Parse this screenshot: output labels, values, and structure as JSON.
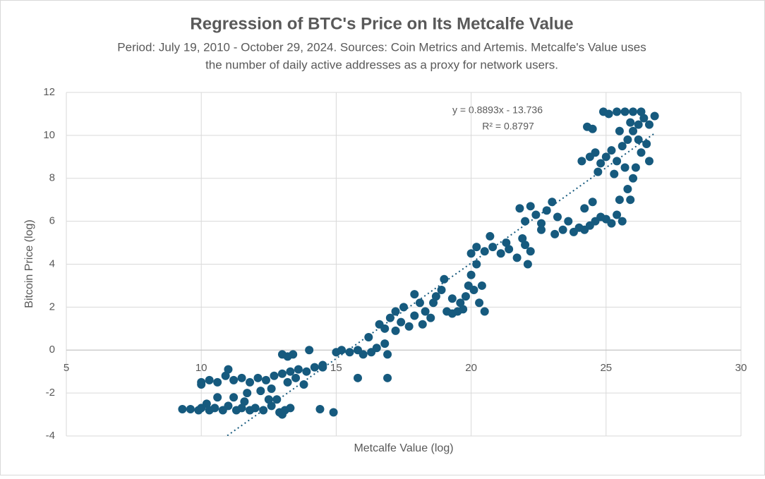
{
  "chart_data": {
    "type": "scatter",
    "title": "Regression of BTC's Price on Its Metcalfe Value",
    "subtitle": [
      "Period: July 19, 2010 - October 29, 2024. Sources: Coin Metrics and Artemis. Metcalfe's Value uses",
      "the number of daily active addresses as a proxy for network users."
    ],
    "x_label": "Metcalfe Value (log)",
    "y_label": "Bitcoin Price (log)",
    "color": "#165a7e",
    "grid": true,
    "xlim": [
      5,
      30
    ],
    "xticks": [
      5,
      10,
      15,
      20,
      25,
      30
    ],
    "ylim": [
      -4,
      12
    ],
    "yticks": [
      -4,
      -2,
      0,
      2,
      4,
      6,
      8,
      10,
      12
    ],
    "trendline": {
      "slope": 0.8893,
      "intercept": -13.736,
      "equation": "y = 0.8893x - 13.736",
      "r_squared": "R² = 0.8797"
    },
    "x": [
      9.3,
      9.6,
      9.9,
      10,
      10.3,
      10.5,
      10.8,
      11,
      11.3,
      11.5,
      11.8,
      12,
      12.3,
      12.6,
      12.9,
      13.1,
      13.3,
      14.4,
      14.9,
      13.0,
      12.5,
      12.8,
      10.2,
      11.6,
      10,
      10,
      10.3,
      10.6,
      10.9,
      11.2,
      11.5,
      11.8,
      12.1,
      12.4,
      12.7,
      13,
      13.3,
      13.6,
      13.9,
      14.2,
      14.5,
      11,
      11.7,
      12.2,
      12.6,
      13.2,
      13.5,
      13.8,
      10.6,
      11.2,
      13,
      13.2,
      13.4,
      14,
      14.5,
      15,
      15.2,
      15.5,
      15.8,
      16,
      16.3,
      16.5,
      16.9,
      16.2,
      15.8,
      16.9,
      16.8,
      16.6,
      16.8,
      17,
      17.2,
      17.4,
      17.5,
      17.7,
      17.9,
      18.1,
      18.3,
      18.5,
      18.7,
      18.9,
      19.1,
      19.3,
      19.5,
      19.7,
      17.9,
      18.2,
      17.2,
      18.6,
      19.0,
      19.3,
      19.6,
      19.8,
      19.9,
      20,
      20.1,
      20.2,
      20.3,
      20.4,
      20.5,
      20,
      20.2,
      20.5,
      20.8,
      21.1,
      21.4,
      21.7,
      22,
      22.2,
      20.7,
      21.3,
      21.9,
      22.1,
      21.8,
      22,
      22.2,
      22.4,
      22.6,
      22.8,
      23,
      23.2,
      23.4,
      23.6,
      23.8,
      24,
      24.2,
      24.4,
      24.6,
      24.8,
      25,
      25.2,
      25.4,
      25.6,
      22.6,
      23.1,
      24.2,
      24.5,
      25.5,
      25.8,
      26,
      25.7,
      25.9,
      24.1,
      24.4,
      24.6,
      24.8,
      25,
      25.2,
      25.4,
      25.6,
      25.8,
      26,
      26.2,
      26.4,
      26.6,
      26.8,
      25.1,
      25.4,
      25.7,
      26,
      26.3,
      24.9,
      24.3,
      24.5,
      25.5,
      25.9,
      26.2,
      26.5,
      26.6,
      24.7,
      25.3,
      26.3,
      26.1
    ],
    "values": [
      -2.75,
      -2.75,
      -2.8,
      -2.7,
      -2.8,
      -2.7,
      -2.8,
      -2.6,
      -2.8,
      -2.7,
      -2.8,
      -2.7,
      -2.8,
      -2.6,
      -2.9,
      -2.8,
      -2.7,
      -2.75,
      -2.9,
      -3.0,
      -2.3,
      -2.3,
      -2.5,
      -2.4,
      -1.6,
      -1.5,
      -1.4,
      -1.5,
      -1.2,
      -1.4,
      -1.3,
      -1.5,
      -1.3,
      -1.4,
      -1.2,
      -1.1,
      -1.0,
      -0.9,
      -1.0,
      -0.8,
      -0.8,
      -0.9,
      -2.0,
      -1.9,
      -1.8,
      -1.5,
      -1.3,
      -1.6,
      -2.2,
      -2.2,
      -0.2,
      -0.3,
      -0.2,
      0,
      -0.7,
      -0.1,
      0,
      -0.1,
      0,
      -0.2,
      -0.1,
      0.1,
      -0.2,
      0.6,
      -1.3,
      -1.3,
      0.3,
      1.2,
      1.0,
      1.5,
      1.8,
      1.3,
      2.0,
      1.1,
      1.6,
      2.2,
      1.8,
      1.5,
      2.5,
      2.8,
      1.8,
      1.7,
      1.8,
      1.9,
      2.6,
      1.2,
      0.9,
      2.2,
      3.3,
      2.4,
      2.2,
      2.5,
      3.0,
      3.5,
      2.8,
      4.0,
      2.2,
      3.0,
      1.8,
      4.5,
      4.8,
      4.6,
      4.8,
      4.5,
      4.7,
      4.3,
      4.9,
      4.6,
      5.3,
      5.0,
      5.2,
      4.0,
      6.6,
      6.0,
      6.7,
      6.3,
      5.9,
      6.5,
      6.9,
      6.2,
      5.6,
      6.0,
      5.5,
      5.7,
      5.6,
      5.8,
      6.0,
      6.2,
      6.1,
      5.9,
      6.3,
      6.0,
      5.6,
      5.4,
      6.6,
      6.9,
      7.0,
      7.5,
      8.0,
      8.5,
      7.0,
      8.8,
      9.0,
      9.2,
      8.7,
      9.0,
      9.3,
      8.8,
      9.5,
      9.8,
      10.2,
      10.5,
      10.8,
      10.5,
      10.9,
      11.0,
      11.1,
      11.1,
      11.1,
      11.1,
      11.1,
      10.4,
      10.3,
      10.2,
      10.6,
      9.8,
      9.6,
      8.8,
      8.3,
      8.2,
      9.2,
      8.5
    ]
  }
}
